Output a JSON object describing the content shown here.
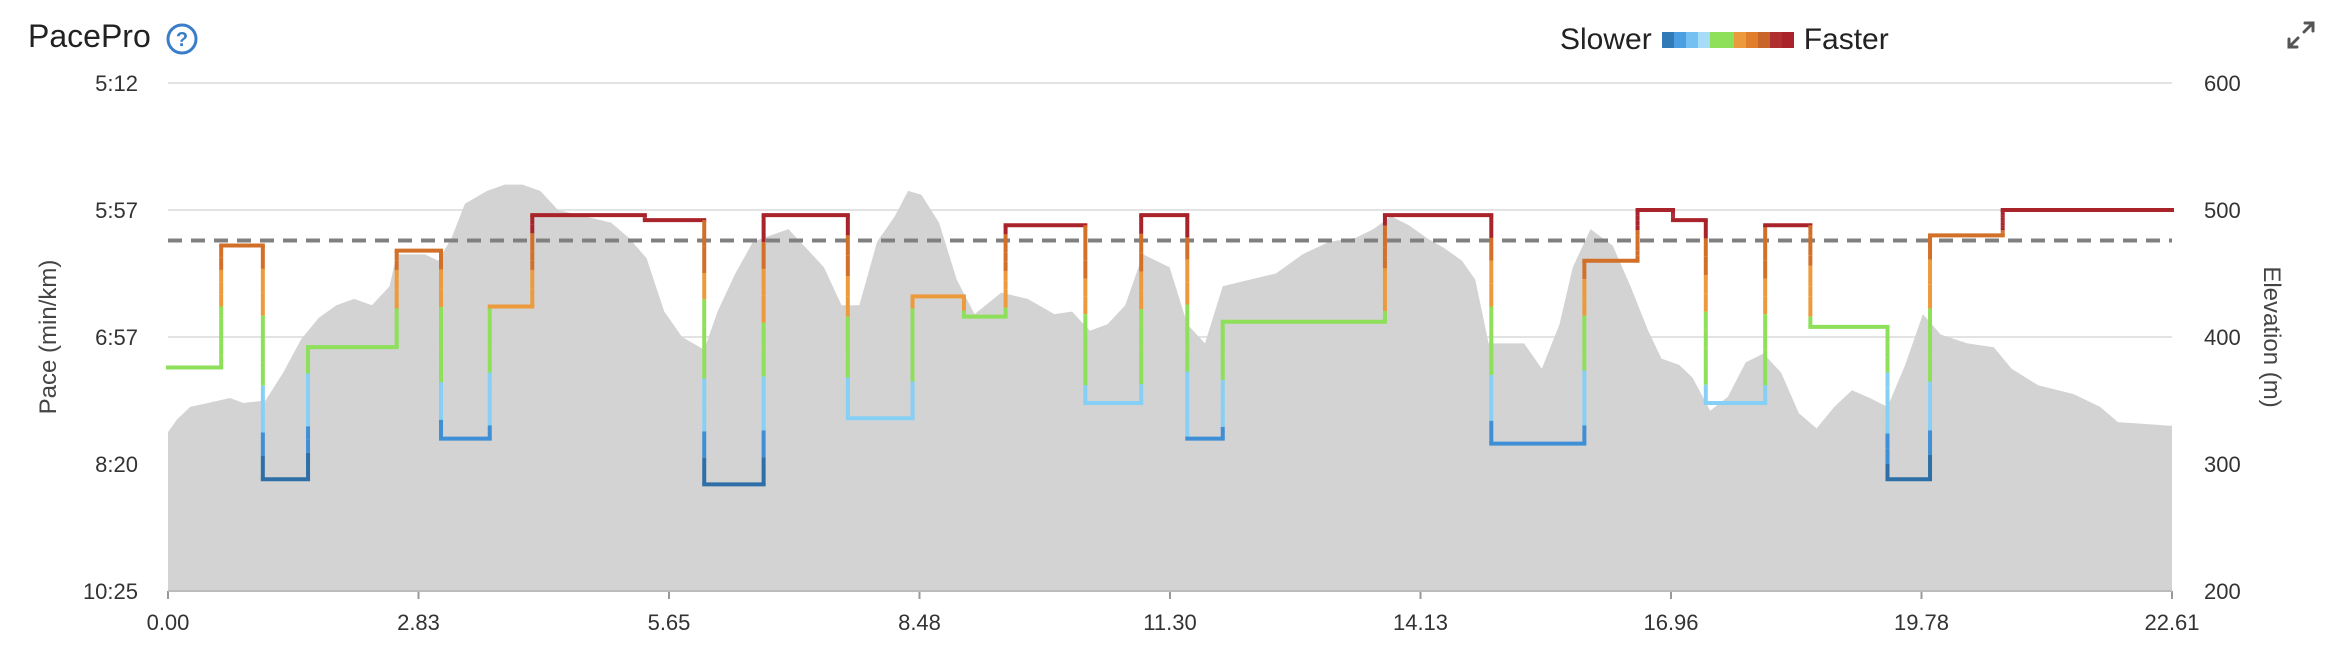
{
  "header": {
    "title": "PacePro",
    "help_icon": "help-circle-icon",
    "expand_icon": "expand-icon"
  },
  "legend": {
    "slower_label": "Slower",
    "faster_label": "Faster",
    "colors": [
      "#2f7ab7",
      "#4b9fe0",
      "#74c0f0",
      "#a6dcf7",
      "#8edf5a",
      "#8edf5a",
      "#eb9a3e",
      "#e07e2c",
      "#c8652a",
      "#b03030",
      "#a8232a"
    ]
  },
  "colors": {
    "elevation_fill": "#d3d3d3",
    "target_line": "#808080",
    "grid": "#e3e3e3"
  },
  "chart_data": {
    "type": "line",
    "title": "PacePro",
    "xlabel": "",
    "ylabel": "Pace (min/km)",
    "y2label": "Elevation (m)",
    "x_ticks": [
      "0.00",
      "2.83",
      "5.65",
      "8.48",
      "11.30",
      "14.13",
      "16.96",
      "19.78",
      "22.61"
    ],
    "xlim": [
      0,
      22.61
    ],
    "y_left_ticks": [
      "5:12",
      "5:57",
      "6:57",
      "8:20",
      "10:25"
    ],
    "y_right_ticks": [
      "600",
      "500",
      "400",
      "300",
      "200"
    ],
    "y2lim": [
      200,
      600
    ],
    "target_pace_level": 0.31,
    "pace_level_note": "level 0 = top gridline (5:12), 1 = bottom axis (10:25)",
    "pace_segments": [
      {
        "x0": 0.0,
        "x1": 0.6,
        "level": 0.56
      },
      {
        "x0": 0.6,
        "x1": 1.07,
        "level": 0.32
      },
      {
        "x0": 1.07,
        "x1": 1.58,
        "level": 0.78
      },
      {
        "x0": 1.58,
        "x1": 2.58,
        "level": 0.52
      },
      {
        "x0": 2.58,
        "x1": 3.08,
        "level": 0.33
      },
      {
        "x0": 3.08,
        "x1": 3.63,
        "level": 0.7
      },
      {
        "x0": 3.63,
        "x1": 4.11,
        "level": 0.44
      },
      {
        "x0": 4.11,
        "x1": 5.38,
        "level": 0.26
      },
      {
        "x0": 5.38,
        "x1": 6.05,
        "level": 0.27
      },
      {
        "x0": 6.05,
        "x1": 6.72,
        "level": 0.79
      },
      {
        "x0": 6.72,
        "x1": 7.67,
        "level": 0.26
      },
      {
        "x0": 7.67,
        "x1": 8.4,
        "level": 0.66
      },
      {
        "x0": 8.4,
        "x1": 8.98,
        "level": 0.42
      },
      {
        "x0": 8.98,
        "x1": 9.45,
        "level": 0.46
      },
      {
        "x0": 9.45,
        "x1": 10.35,
        "level": 0.28
      },
      {
        "x0": 10.35,
        "x1": 10.98,
        "level": 0.63
      },
      {
        "x0": 10.98,
        "x1": 11.5,
        "level": 0.26
      },
      {
        "x0": 11.5,
        "x1": 11.9,
        "level": 0.7
      },
      {
        "x0": 11.9,
        "x1": 13.73,
        "level": 0.47
      },
      {
        "x0": 13.73,
        "x1": 14.93,
        "level": 0.26
      },
      {
        "x0": 14.93,
        "x1": 15.98,
        "level": 0.71
      },
      {
        "x0": 15.98,
        "x1": 16.58,
        "level": 0.35
      },
      {
        "x0": 16.58,
        "x1": 16.98,
        "level": 0.25
      },
      {
        "x0": 16.98,
        "x1": 17.35,
        "level": 0.27
      },
      {
        "x0": 17.35,
        "x1": 18.02,
        "level": 0.63
      },
      {
        "x0": 18.02,
        "x1": 18.53,
        "level": 0.28
      },
      {
        "x0": 18.53,
        "x1": 19.4,
        "level": 0.48
      },
      {
        "x0": 19.4,
        "x1": 19.88,
        "level": 0.78
      },
      {
        "x0": 19.88,
        "x1": 20.7,
        "level": 0.3
      },
      {
        "x0": 20.7,
        "x1": 22.61,
        "level": 0.25
      }
    ],
    "elevation": [
      [
        0.0,
        325
      ],
      [
        0.1,
        335
      ],
      [
        0.25,
        345
      ],
      [
        0.45,
        348
      ],
      [
        0.7,
        352
      ],
      [
        0.85,
        348
      ],
      [
        1.1,
        350
      ],
      [
        1.3,
        372
      ],
      [
        1.5,
        398
      ],
      [
        1.7,
        415
      ],
      [
        1.9,
        425
      ],
      [
        2.1,
        430
      ],
      [
        2.3,
        425
      ],
      [
        2.5,
        440
      ],
      [
        2.58,
        465
      ],
      [
        2.9,
        465
      ],
      [
        3.05,
        460
      ],
      [
        3.2,
        478
      ],
      [
        3.35,
        505
      ],
      [
        3.6,
        515
      ],
      [
        3.8,
        520
      ],
      [
        4.0,
        520
      ],
      [
        4.2,
        515
      ],
      [
        4.4,
        500
      ],
      [
        4.7,
        495
      ],
      [
        5.0,
        490
      ],
      [
        5.2,
        478
      ],
      [
        5.4,
        462
      ],
      [
        5.6,
        420
      ],
      [
        5.8,
        400
      ],
      [
        6.05,
        390
      ],
      [
        6.2,
        420
      ],
      [
        6.4,
        450
      ],
      [
        6.6,
        475
      ],
      [
        6.8,
        480
      ],
      [
        7.0,
        485
      ],
      [
        7.2,
        470
      ],
      [
        7.4,
        455
      ],
      [
        7.6,
        425
      ],
      [
        7.8,
        425
      ],
      [
        8.0,
        475
      ],
      [
        8.2,
        495
      ],
      [
        8.35,
        515
      ],
      [
        8.5,
        512
      ],
      [
        8.7,
        490
      ],
      [
        8.9,
        445
      ],
      [
        9.1,
        418
      ],
      [
        9.4,
        435
      ],
      [
        9.7,
        430
      ],
      [
        10.0,
        418
      ],
      [
        10.2,
        420
      ],
      [
        10.4,
        405
      ],
      [
        10.6,
        410
      ],
      [
        10.8,
        425
      ],
      [
        11.0,
        465
      ],
      [
        11.3,
        455
      ],
      [
        11.5,
        410
      ],
      [
        11.7,
        395
      ],
      [
        11.9,
        440
      ],
      [
        12.2,
        445
      ],
      [
        12.5,
        450
      ],
      [
        12.8,
        465
      ],
      [
        13.1,
        475
      ],
      [
        13.4,
        478
      ],
      [
        13.6,
        485
      ],
      [
        13.8,
        495
      ],
      [
        14.0,
        488
      ],
      [
        14.2,
        478
      ],
      [
        14.4,
        470
      ],
      [
        14.6,
        460
      ],
      [
        14.75,
        445
      ],
      [
        14.9,
        395
      ],
      [
        15.3,
        395
      ],
      [
        15.5,
        375
      ],
      [
        15.7,
        410
      ],
      [
        15.85,
        455
      ],
      [
        16.05,
        485
      ],
      [
        16.3,
        472
      ],
      [
        16.5,
        440
      ],
      [
        16.7,
        405
      ],
      [
        16.85,
        383
      ],
      [
        17.05,
        378
      ],
      [
        17.2,
        368
      ],
      [
        17.4,
        342
      ],
      [
        17.6,
        353
      ],
      [
        17.8,
        380
      ],
      [
        18.0,
        387
      ],
      [
        18.2,
        372
      ],
      [
        18.4,
        340
      ],
      [
        18.6,
        328
      ],
      [
        18.8,
        345
      ],
      [
        19.0,
        358
      ],
      [
        19.2,
        352
      ],
      [
        19.4,
        345
      ],
      [
        19.6,
        378
      ],
      [
        19.8,
        418
      ],
      [
        20.0,
        402
      ],
      [
        20.3,
        395
      ],
      [
        20.6,
        392
      ],
      [
        20.8,
        375
      ],
      [
        21.1,
        362
      ],
      [
        21.5,
        355
      ],
      [
        21.8,
        345
      ],
      [
        22.0,
        333
      ],
      [
        22.61,
        330
      ]
    ]
  }
}
